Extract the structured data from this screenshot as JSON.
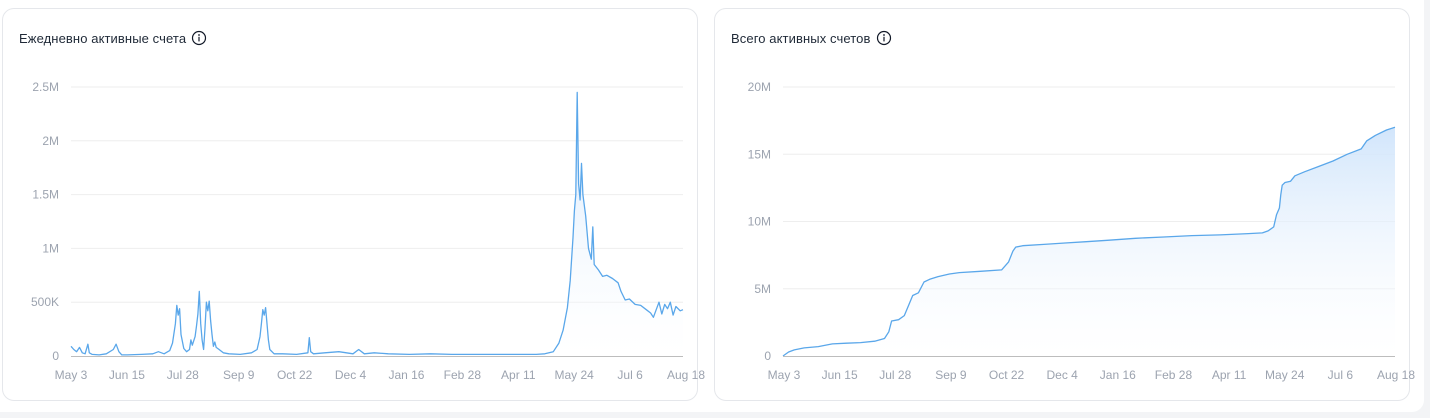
{
  "cards": [
    {
      "title": "Ежедневно активные счета"
    },
    {
      "title": "Всего активных счетов"
    }
  ],
  "icons": {
    "info": "info-icon"
  },
  "colors": {
    "line": "#5aa7ea",
    "fill_top": "#cfe4fb",
    "grid": "#eeeeee",
    "axis": "#bdbdbd"
  },
  "chart_data": [
    {
      "type": "area",
      "title": "Ежедневно активные счета",
      "xlabel": "",
      "ylabel": "",
      "x_ticks": [
        "May 3",
        "Jun 15",
        "Jul 28",
        "Sep 9",
        "Oct 22",
        "Dec 4",
        "Jan 16",
        "Feb 28",
        "Apr 11",
        "May 24",
        "Jul 6",
        "Aug 18"
      ],
      "y_ticks": [
        0,
        500000,
        1000000,
        1500000,
        2000000,
        2500000
      ],
      "y_tick_labels": [
        "0",
        "500K",
        "1M",
        "1.5M",
        "2M",
        "2.5M"
      ],
      "ylim": [
        0,
        2500000
      ],
      "grid": true,
      "series": [
        {
          "points": [
            [
              0,
              90000
            ],
            [
              2,
              60000
            ],
            [
              4,
              40000
            ],
            [
              6,
              80000
            ],
            [
              8,
              30000
            ],
            [
              10,
              20000
            ],
            [
              12,
              110000
            ],
            [
              13,
              30000
            ],
            [
              15,
              15000
            ],
            [
              20,
              10000
            ],
            [
              25,
              20000
            ],
            [
              30,
              60000
            ],
            [
              32,
              110000
            ],
            [
              34,
              40000
            ],
            [
              36,
              10000
            ],
            [
              40,
              10000
            ],
            [
              50,
              15000
            ],
            [
              58,
              20000
            ],
            [
              62,
              40000
            ],
            [
              66,
              20000
            ],
            [
              70,
              50000
            ],
            [
              72,
              120000
            ],
            [
              74,
              300000
            ],
            [
              75,
              470000
            ],
            [
              76,
              380000
            ],
            [
              77,
              440000
            ],
            [
              78,
              200000
            ],
            [
              80,
              70000
            ],
            [
              82,
              40000
            ],
            [
              84,
              60000
            ],
            [
              85,
              150000
            ],
            [
              86,
              100000
            ],
            [
              88,
              180000
            ],
            [
              89,
              280000
            ],
            [
              90,
              390000
            ],
            [
              91,
              600000
            ],
            [
              92,
              300000
            ],
            [
              93,
              150000
            ],
            [
              94,
              60000
            ],
            [
              95,
              260000
            ],
            [
              96,
              500000
            ],
            [
              97,
              420000
            ],
            [
              98,
              510000
            ],
            [
              99,
              330000
            ],
            [
              100,
              200000
            ],
            [
              101,
              90000
            ],
            [
              102,
              130000
            ],
            [
              103,
              80000
            ],
            [
              105,
              60000
            ],
            [
              108,
              30000
            ],
            [
              112,
              20000
            ],
            [
              120,
              15000
            ],
            [
              128,
              30000
            ],
            [
              132,
              60000
            ],
            [
              134,
              180000
            ],
            [
              135,
              300000
            ],
            [
              136,
              430000
            ],
            [
              137,
              380000
            ],
            [
              138,
              450000
            ],
            [
              139,
              300000
            ],
            [
              140,
              150000
            ],
            [
              141,
              60000
            ],
            [
              144,
              20000
            ],
            [
              150,
              20000
            ],
            [
              160,
              15000
            ],
            [
              168,
              30000
            ],
            [
              169,
              170000
            ],
            [
              170,
              40000
            ],
            [
              172,
              20000
            ],
            [
              180,
              30000
            ],
            [
              190,
              40000
            ],
            [
              200,
              20000
            ],
            [
              204,
              60000
            ],
            [
              208,
              20000
            ],
            [
              215,
              30000
            ],
            [
              225,
              20000
            ],
            [
              240,
              15000
            ],
            [
              255,
              20000
            ],
            [
              270,
              15000
            ],
            [
              285,
              15000
            ],
            [
              300,
              15000
            ],
            [
              310,
              15000
            ],
            [
              330,
              15000
            ],
            [
              336,
              20000
            ],
            [
              342,
              40000
            ],
            [
              346,
              120000
            ],
            [
              349,
              240000
            ],
            [
              352,
              450000
            ],
            [
              354,
              700000
            ],
            [
              356,
              1100000
            ],
            [
              357,
              1350000
            ],
            [
              358,
              1500000
            ],
            [
              359,
              2450000
            ],
            [
              360,
              1600000
            ],
            [
              361,
              1450000
            ],
            [
              362,
              1790000
            ],
            [
              363,
              1500000
            ],
            [
              365,
              1300000
            ],
            [
              367,
              1000000
            ],
            [
              369,
              900000
            ],
            [
              370,
              1200000
            ],
            [
              371,
              850000
            ],
            [
              374,
              800000
            ],
            [
              377,
              740000
            ],
            [
              380,
              750000
            ],
            [
              384,
              720000
            ],
            [
              388,
              680000
            ],
            [
              390,
              600000
            ],
            [
              393,
              520000
            ],
            [
              396,
              530000
            ],
            [
              400,
              480000
            ],
            [
              404,
              470000
            ],
            [
              408,
              430000
            ],
            [
              411,
              400000
            ],
            [
              413,
              360000
            ],
            [
              415,
              430000
            ],
            [
              417,
              500000
            ],
            [
              419,
              390000
            ],
            [
              421,
              480000
            ],
            [
              423,
              440000
            ],
            [
              425,
              500000
            ],
            [
              427,
              380000
            ],
            [
              429,
              460000
            ],
            [
              432,
              420000
            ],
            [
              434,
              430000
            ]
          ]
        }
      ]
    },
    {
      "type": "area",
      "title": "Всего активных счетов",
      "xlabel": "",
      "ylabel": "",
      "x_ticks": [
        "May 3",
        "Jun 15",
        "Jul 28",
        "Sep 9",
        "Oct 22",
        "Dec 4",
        "Jan 16",
        "Feb 28",
        "Apr 11",
        "May 24",
        "Jul 6",
        "Aug 18"
      ],
      "y_ticks": [
        0,
        5000000,
        10000000,
        15000000,
        20000000
      ],
      "y_tick_labels": [
        "0",
        "5M",
        "10M",
        "15M",
        "20M"
      ],
      "ylim": [
        0,
        20000000
      ],
      "grid": true,
      "series": [
        {
          "points": [
            [
              0,
              0
            ],
            [
              4,
              300000
            ],
            [
              8,
              450000
            ],
            [
              15,
              600000
            ],
            [
              25,
              700000
            ],
            [
              30,
              800000
            ],
            [
              35,
              900000
            ],
            [
              45,
              950000
            ],
            [
              55,
              1000000
            ],
            [
              65,
              1100000
            ],
            [
              72,
              1300000
            ],
            [
              75,
              1800000
            ],
            [
              77,
              2600000
            ],
            [
              82,
              2700000
            ],
            [
              86,
              3000000
            ],
            [
              90,
              4000000
            ],
            [
              92,
              4500000
            ],
            [
              96,
              4700000
            ],
            [
              100,
              5500000
            ],
            [
              104,
              5700000
            ],
            [
              110,
              5900000
            ],
            [
              118,
              6100000
            ],
            [
              125,
              6200000
            ],
            [
              140,
              6300000
            ],
            [
              155,
              6400000
            ],
            [
              160,
              7000000
            ],
            [
              163,
              7800000
            ],
            [
              165,
              8100000
            ],
            [
              170,
              8200000
            ],
            [
              185,
              8300000
            ],
            [
              200,
              8400000
            ],
            [
              215,
              8500000
            ],
            [
              230,
              8600000
            ],
            [
              250,
              8750000
            ],
            [
              270,
              8850000
            ],
            [
              290,
              8950000
            ],
            [
              310,
              9000000
            ],
            [
              330,
              9100000
            ],
            [
              340,
              9150000
            ],
            [
              344,
              9300000
            ],
            [
              348,
              9600000
            ],
            [
              350,
              10500000
            ],
            [
              352,
              11000000
            ],
            [
              353,
              12000000
            ],
            [
              354,
              12700000
            ],
            [
              356,
              12900000
            ],
            [
              360,
              13000000
            ],
            [
              363,
              13400000
            ],
            [
              370,
              13700000
            ],
            [
              380,
              14100000
            ],
            [
              390,
              14500000
            ],
            [
              400,
              15000000
            ],
            [
              410,
              15400000
            ],
            [
              414,
              16000000
            ],
            [
              420,
              16400000
            ],
            [
              428,
              16800000
            ],
            [
              434,
              17000000
            ]
          ]
        }
      ]
    }
  ]
}
